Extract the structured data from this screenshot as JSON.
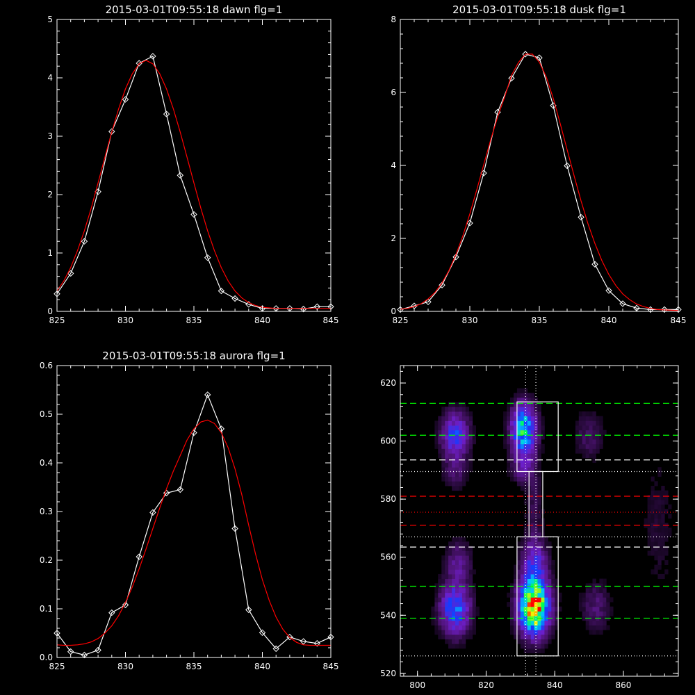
{
  "chart_data": [
    {
      "type": "line",
      "title": "2015-03-01T09:55:18 dawn flg=1",
      "xlim": [
        825,
        845
      ],
      "ylim": [
        0,
        5
      ],
      "xticks": [
        "825",
        "830",
        "835",
        "840",
        "845"
      ],
      "yticks": [
        "0",
        "1",
        "2",
        "3",
        "4",
        "5"
      ],
      "series": [
        {
          "color": "#ffffff",
          "marker": "diamond",
          "x": [
            825,
            826,
            827,
            828,
            829,
            830,
            831,
            832,
            833,
            834,
            835,
            836,
            837,
            838,
            839,
            840,
            841,
            842,
            843,
            844,
            845
          ],
          "y": [
            0.3,
            0.65,
            1.2,
            2.05,
            3.08,
            3.63,
            4.25,
            4.37,
            3.38,
            2.33,
            1.66,
            0.92,
            0.35,
            0.22,
            0.12,
            0.05,
            0.05,
            0.05,
            0.04,
            0.08,
            0.08
          ]
        },
        {
          "color": "#ff0000",
          "fit": "gaussian",
          "x": [
            825,
            825.5,
            826,
            826.5,
            827,
            827.5,
            828,
            828.5,
            829,
            829.5,
            830,
            830.5,
            831,
            831.5,
            832,
            832.5,
            833,
            833.5,
            834,
            834.5,
            835,
            835.5,
            836,
            836.5,
            837,
            837.5,
            838,
            838.5,
            839,
            839.5,
            840,
            840.5,
            841,
            841.5,
            842,
            842.5,
            843,
            843.5,
            844,
            844.5,
            845
          ],
          "y": [
            0.35,
            0.52,
            0.75,
            1.04,
            1.38,
            1.77,
            2.2,
            2.64,
            3.07,
            3.47,
            3.81,
            4.07,
            4.24,
            4.3,
            4.24,
            4.07,
            3.81,
            3.47,
            3.07,
            2.64,
            2.2,
            1.77,
            1.38,
            1.04,
            0.75,
            0.52,
            0.35,
            0.23,
            0.15,
            0.1,
            0.07,
            0.06,
            0.05,
            0.05,
            0.05,
            0.05,
            0.05,
            0.05,
            0.05,
            0.05,
            0.05
          ]
        }
      ]
    },
    {
      "type": "line",
      "title": "2015-03-01T09:55:18 dusk flg=1",
      "xlim": [
        825,
        845
      ],
      "ylim": [
        0,
        8
      ],
      "xticks": [
        "825",
        "830",
        "835",
        "840",
        "845"
      ],
      "yticks": [
        "0",
        "2",
        "4",
        "6",
        "8"
      ],
      "series": [
        {
          "color": "#ffffff",
          "marker": "diamond",
          "x": [
            825,
            826,
            827,
            828,
            829,
            830,
            831,
            832,
            833,
            834,
            835,
            836,
            837,
            838,
            839,
            840,
            841,
            842,
            843,
            844,
            845
          ],
          "y": [
            0.05,
            0.15,
            0.26,
            0.72,
            1.49,
            2.42,
            3.79,
            5.46,
            6.39,
            7.05,
            6.95,
            5.64,
            3.99,
            2.58,
            1.29,
            0.57,
            0.21,
            0.09,
            0.05,
            0.05,
            0.05
          ]
        },
        {
          "color": "#ff0000",
          "fit": "gaussian",
          "x": [
            825,
            825.5,
            826,
            826.5,
            827,
            827.5,
            828,
            828.5,
            829,
            829.5,
            830,
            830.5,
            831,
            831.5,
            832,
            832.5,
            833,
            833.5,
            834,
            834.5,
            835,
            835.5,
            836,
            836.5,
            837,
            837.5,
            838,
            838.5,
            839,
            839.5,
            840,
            840.5,
            841,
            841.5,
            842,
            842.5,
            843,
            843.5,
            844,
            844.5,
            845
          ],
          "y": [
            0.06,
            0.08,
            0.13,
            0.21,
            0.34,
            0.52,
            0.78,
            1.12,
            1.55,
            2.07,
            2.67,
            3.33,
            4.02,
            4.7,
            5.33,
            5.87,
            6.47,
            6.82,
            7.05,
            7.05,
            6.83,
            6.42,
            5.84,
            5.15,
            4.43,
            3.72,
            3.03,
            2.4,
            1.86,
            1.39,
            1.01,
            0.71,
            0.48,
            0.32,
            0.2,
            0.13,
            0.08,
            0.05,
            0.04,
            0.03,
            0.02
          ]
        }
      ]
    },
    {
      "type": "line",
      "title": "2015-03-01T09:55:18 aurora flg=1",
      "xlim": [
        825,
        845
      ],
      "ylim": [
        0,
        0.6
      ],
      "xticks": [
        "825",
        "830",
        "835",
        "840",
        "845"
      ],
      "yticks": [
        "0.0",
        "0.1",
        "0.2",
        "0.3",
        "0.4",
        "0.5",
        "0.6"
      ],
      "series": [
        {
          "color": "#ffffff",
          "marker": "diamond",
          "x": [
            825,
            826,
            827,
            828,
            829,
            830,
            831,
            832,
            833,
            834,
            835,
            836,
            837,
            838,
            839,
            840,
            841,
            842,
            843,
            844,
            845
          ],
          "y": [
            0.05,
            0.012,
            0.005,
            0.015,
            0.092,
            0.108,
            0.207,
            0.298,
            0.338,
            0.345,
            0.462,
            0.54,
            0.47,
            0.265,
            0.098,
            0.051,
            0.018,
            0.042,
            0.033,
            0.029,
            0.042
          ]
        },
        {
          "color": "#ff0000",
          "fit": "gaussian",
          "x": [
            825,
            825.5,
            826,
            826.5,
            827,
            827.5,
            828,
            828.5,
            829,
            829.5,
            830,
            830.5,
            831,
            831.5,
            832,
            832.5,
            833,
            833.5,
            834,
            834.5,
            835,
            835.5,
            836,
            836.5,
            837,
            837.5,
            838,
            838.5,
            839,
            839.5,
            840,
            840.5,
            841,
            841.5,
            842,
            842.5,
            843,
            843.5,
            844,
            844.5,
            845
          ],
          "y": [
            0.026,
            0.025,
            0.025,
            0.026,
            0.028,
            0.032,
            0.039,
            0.05,
            0.065,
            0.086,
            0.113,
            0.145,
            0.182,
            0.223,
            0.265,
            0.307,
            0.347,
            0.383,
            0.415,
            0.447,
            0.47,
            0.484,
            0.488,
            0.481,
            0.462,
            0.431,
            0.388,
            0.334,
            0.272,
            0.213,
            0.16,
            0.117,
            0.083,
            0.058,
            0.041,
            0.031,
            0.026,
            0.025,
            0.025,
            0.025,
            0.025
          ]
        }
      ]
    },
    {
      "type": "heatmap",
      "title": "",
      "xlim": [
        795,
        876
      ],
      "ylim": [
        519,
        626
      ],
      "xticks": [
        "800",
        "820",
        "840",
        "860"
      ],
      "yticks": [
        "520",
        "540",
        "560",
        "580",
        "600",
        "620"
      ],
      "blobs": [
        {
          "cx": 811,
          "cy": 602,
          "sx": 2.8,
          "sy": 5.5,
          "amp": 0.4
        },
        {
          "cx": 811,
          "cy": 589,
          "sx": 2.5,
          "sy": 4.0,
          "amp": 0.12
        },
        {
          "cx": 811,
          "cy": 542,
          "sx": 3.0,
          "sy": 6.0,
          "amp": 0.5
        },
        {
          "cx": 812,
          "cy": 558,
          "sx": 2.5,
          "sy": 5.0,
          "amp": 0.2
        },
        {
          "cx": 831,
          "cy": 604,
          "sx": 2.5,
          "sy": 6.0,
          "amp": 0.65
        },
        {
          "cx": 831,
          "cy": 591,
          "sx": 2.5,
          "sy": 4.0,
          "amp": 0.18
        },
        {
          "cx": 834,
          "cy": 543,
          "sx": 3.0,
          "sy": 6.5,
          "amp": 1.0
        },
        {
          "cx": 834,
          "cy": 558,
          "sx": 2.5,
          "sy": 6.0,
          "amp": 0.32
        },
        {
          "cx": 834,
          "cy": 578,
          "sx": 1.8,
          "sy": 8.0,
          "amp": 0.1
        },
        {
          "cx": 850,
          "cy": 602,
          "sx": 3.0,
          "sy": 6.0,
          "amp": 0.12
        },
        {
          "cx": 852,
          "cy": 543,
          "sx": 3.0,
          "sy": 6.0,
          "amp": 0.14
        },
        {
          "cx": 870,
          "cy": 570,
          "sx": 3.5,
          "sy": 20.0,
          "amp": 0.06
        }
      ],
      "hlines": [
        {
          "y": 613,
          "color": "#00ff00",
          "style": "dashed"
        },
        {
          "y": 602,
          "color": "#00ff00",
          "style": "dashed"
        },
        {
          "y": 593.5,
          "color": "#ffffff",
          "style": "dashed"
        },
        {
          "y": 589.5,
          "color": "#ffffff",
          "style": "dotted"
        },
        {
          "y": 581,
          "color": "#ff0000",
          "style": "dashed"
        },
        {
          "y": 575.5,
          "color": "#ff0000",
          "style": "dotted"
        },
        {
          "y": 571,
          "color": "#ff0000",
          "style": "dashed"
        },
        {
          "y": 567,
          "color": "#ffffff",
          "style": "dotted"
        },
        {
          "y": 563.5,
          "color": "#ffffff",
          "style": "dashed"
        },
        {
          "y": 550,
          "color": "#00ff00",
          "style": "dashed"
        },
        {
          "y": 539,
          "color": "#00ff00",
          "style": "dashed"
        },
        {
          "y": 526,
          "color": "#ffffff",
          "style": "dotted"
        }
      ],
      "vlines": [
        {
          "x": 831.5,
          "color": "#ffffff",
          "style": "dotted"
        },
        {
          "x": 834.5,
          "color": "#ffffff",
          "style": "dotted"
        }
      ],
      "boxes": [
        {
          "x0": 829,
          "x1": 841,
          "y0": 589.5,
          "y1": 613.5
        },
        {
          "x0": 829,
          "x1": 841,
          "y0": 526,
          "y1": 567
        },
        {
          "x0": 832.5,
          "x1": 836.5,
          "y0": 567,
          "y1": 589.5
        }
      ],
      "colors": {
        "frame": "#ffffff"
      }
    }
  ]
}
